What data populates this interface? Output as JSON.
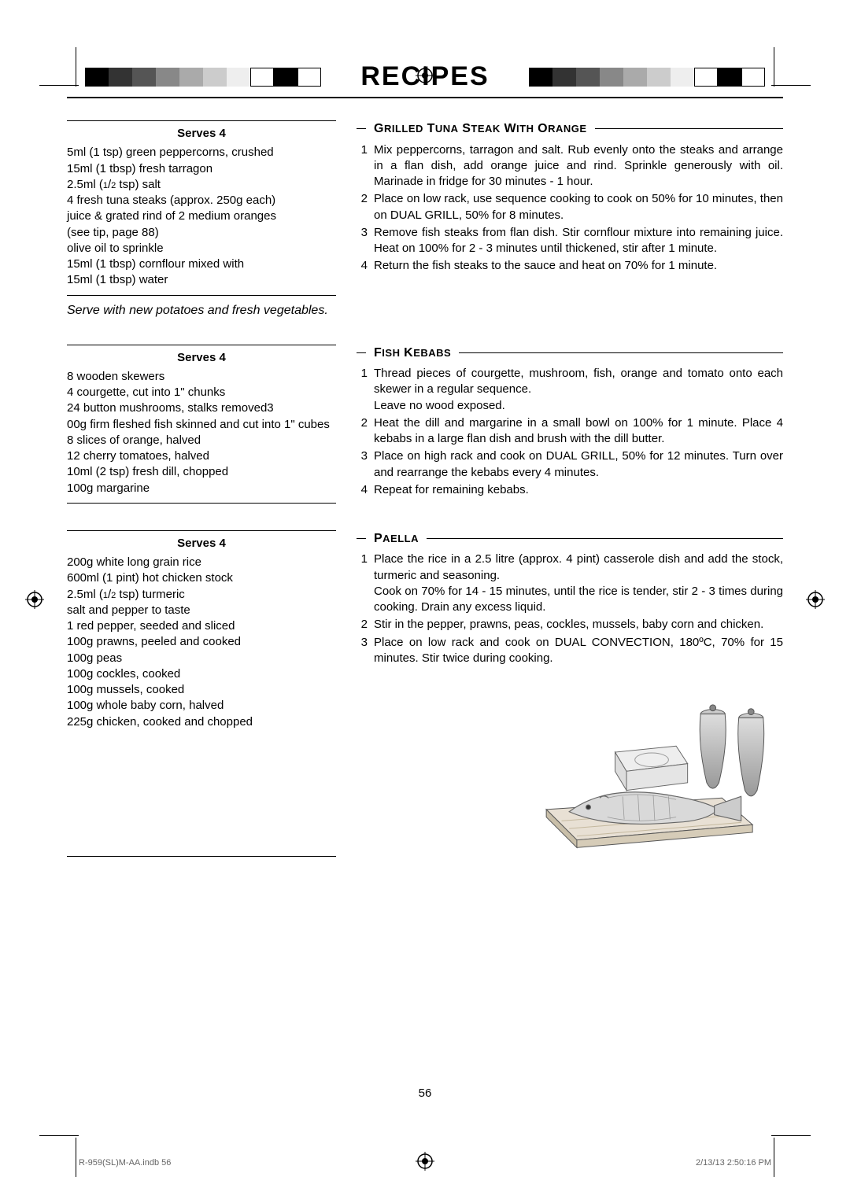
{
  "page": {
    "title": "RECIPES",
    "number": "56"
  },
  "footer": {
    "left": "R-959(SL)M-AA.indb   56",
    "right": "2/13/13   2:50:16 PM"
  },
  "recipes": [
    {
      "title": "Grilled Tuna Steak with Orange",
      "serves": "Serves 4",
      "ingredients": [
        "5ml (1 tsp) green peppercorns, crushed",
        "15ml (1 tbsp) fresh tarragon",
        "2.5ml (1/2 tsp) salt",
        "4 fresh tuna steaks (approx. 250g each)",
        "juice & grated rind of 2 medium oranges",
        "(see tip, page 88)",
        "olive oil to sprinkle",
        "15ml (1 tbsp) cornflour mixed with",
        "15ml (1 tbsp) water"
      ],
      "note": "Serve with new potatoes and fresh vegetables.",
      "steps": [
        "Mix peppercorns, tarragon and salt. Rub evenly onto the steaks and arrange in a flan dish, add orange juice and rind. Sprinkle generously with oil. Marinade in fridge for 30 minutes - 1 hour.",
        "Place on low rack, use sequence cooking to cook on 50% for 10 minutes, then on DUAL GRILL, 50% for 8 minutes.",
        "Remove fish steaks from flan dish. Stir cornflour mixture into remaining juice. Heat on 100% for 2 - 3 minutes until thickened, stir after 1 minute.",
        "Return the fish steaks to the sauce and heat on 70% for 1 minute."
      ]
    },
    {
      "title": "Fish Kebabs",
      "serves": "Serves 4",
      "ingredients": [
        "8 wooden skewers",
        "4 courgette, cut into 1\" chunks",
        "24 button mushrooms, stalks removed3",
        "00g firm fleshed fish skinned and cut into 1\" cubes",
        "8 slices of orange, halved",
        "12 cherry tomatoes, halved",
        "10ml (2 tsp) fresh dill, chopped",
        "100g margarine"
      ],
      "steps": [
        "Thread pieces of courgette, mushroom, fish, orange and tomato onto each skewer in a regular sequence.\nLeave no wood exposed.",
        "Heat the dill and margarine in a small bowl on 100% for 1 minute. Place 4 kebabs in a large flan dish and brush with the dill butter.",
        "Place on high rack and cook on DUAL GRILL, 50% for 12 minutes. Turn over and rearrange the kebabs every 4 minutes.",
        "Repeat for remaining kebabs."
      ]
    },
    {
      "title": "Paella",
      "serves": "Serves 4",
      "ingredients": [
        "200g white long grain rice",
        "600ml (1 pint) hot chicken stock",
        "2.5ml (1/2 tsp) turmeric",
        "salt and pepper to taste",
        "1 red pepper, seeded and sliced",
        "100g prawns, peeled and cooked",
        "100g peas",
        "100g cockles, cooked",
        "100g mussels, cooked",
        "100g whole baby corn, halved",
        "225g chicken, cooked and chopped"
      ],
      "steps": [
        "Place the rice in a 2.5 litre (approx. 4 pint) casserole dish and add the stock, turmeric and seasoning.\nCook on 70% for 14 - 15 minutes, until the rice is tender, stir 2 - 3 times during cooking. Drain any excess liquid.",
        "Stir in the pepper, prawns, peas, cockles, mussels, baby corn and chicken.",
        "Place on low rack and cook on DUAL CONVECTION, 180ºC, 70% for 15 minutes. Stir twice during cooking."
      ]
    }
  ],
  "colors": {
    "colorbar": [
      "#000",
      "#333",
      "#555",
      "#888",
      "#aaa",
      "#ccc",
      "#eee",
      "#fff",
      "#000",
      "#fff"
    ],
    "crop": "#000"
  },
  "illustration": {
    "alt": "fish on board with grinders and butter illustration"
  }
}
